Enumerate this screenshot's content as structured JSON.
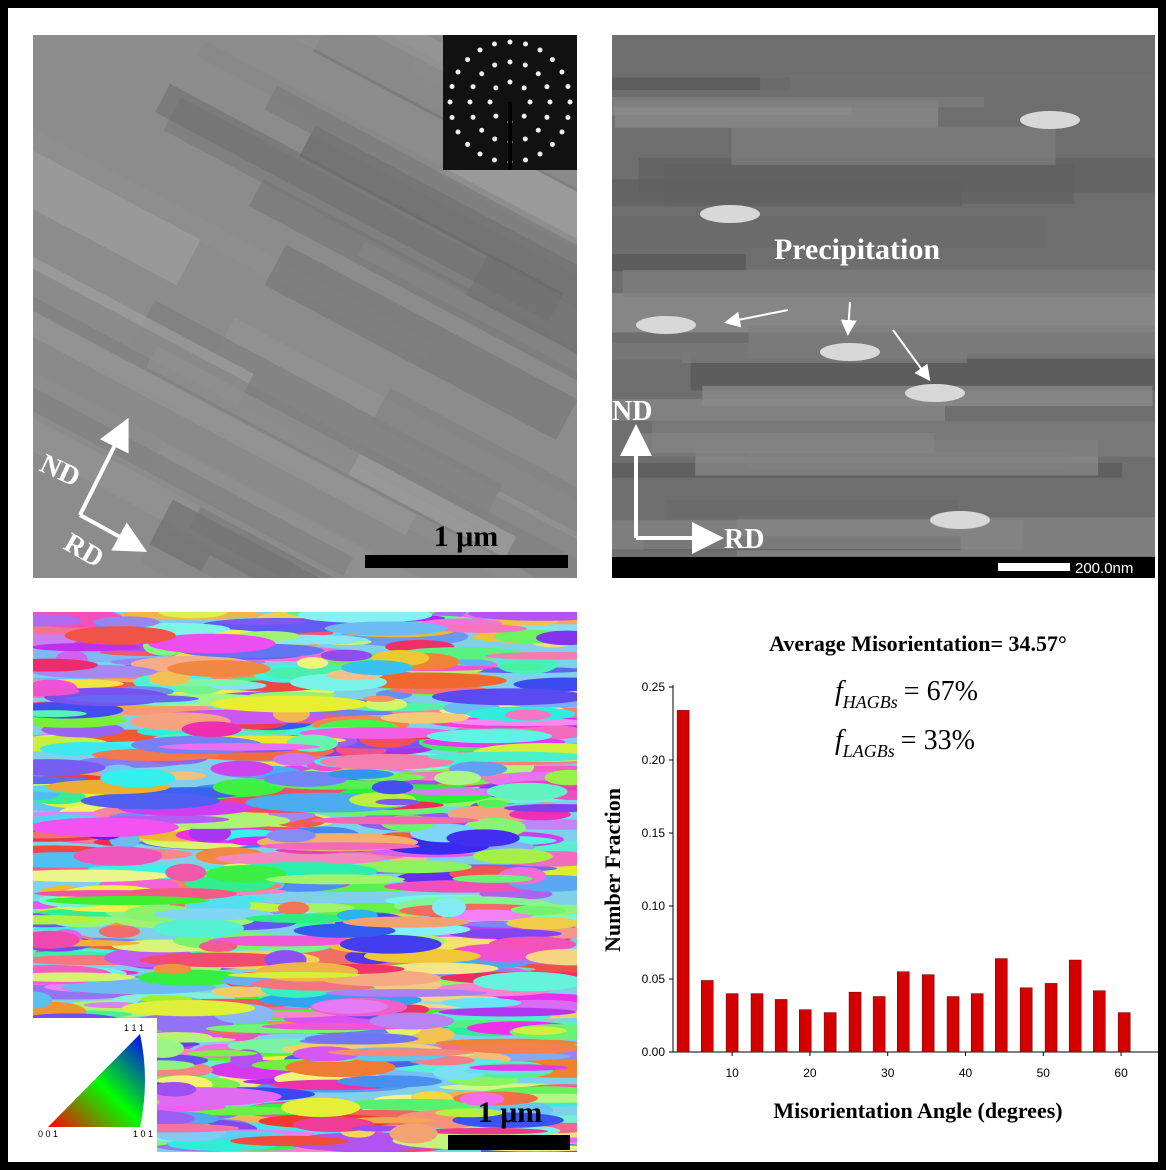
{
  "panels": {
    "tem": {
      "scale_bar": "1 μm",
      "nd": "ND",
      "rd": "RD"
    },
    "haadf": {
      "annotation": "Precipitation",
      "nd": "ND",
      "rd": "RD",
      "scale_bar": "200.0nm"
    },
    "ebsd": {
      "scale_bar": "1 μm",
      "ipf_key": [
        "1 1 1",
        "0 0 1",
        "1 0 1"
      ]
    }
  },
  "chart_data": {
    "type": "bar",
    "title": "Average Misorientation= 34.57°",
    "annotations": [
      {
        "symbol": "f",
        "subscript": "HAGBs",
        "text": "= 67%"
      },
      {
        "symbol": "f",
        "subscript": "LAGBs",
        "text": "= 33%"
      }
    ],
    "x_label": "Misorientation Angle (degrees)",
    "y_label": "Number Fraction",
    "x": [
      3.7,
      6.8,
      10.0,
      13.2,
      16.3,
      19.4,
      22.6,
      25.8,
      28.9,
      32.0,
      35.2,
      38.4,
      41.5,
      44.6,
      47.8,
      51.0,
      54.1,
      57.2,
      60.4
    ],
    "values": [
      0.234,
      0.049,
      0.04,
      0.04,
      0.036,
      0.029,
      0.027,
      0.041,
      0.038,
      0.055,
      0.053,
      0.038,
      0.04,
      0.064,
      0.044,
      0.047,
      0.063,
      0.042,
      0.027
    ],
    "color": "#d40000",
    "xlim": [
      2.4,
      65
    ],
    "xticks": [
      10,
      20,
      30,
      40,
      50,
      60
    ],
    "ylim": [
      0,
      0.25
    ],
    "yticks": [
      {
        "value": 0,
        "label": "0.00"
      },
      {
        "value": 0.05,
        "label": "0.05"
      },
      {
        "value": 0.1,
        "label": "0.10"
      },
      {
        "value": 0.15,
        "label": "0.15"
      },
      {
        "value": 0.2,
        "label": "0.20"
      },
      {
        "value": 0.25,
        "label": "0.25"
      }
    ]
  }
}
